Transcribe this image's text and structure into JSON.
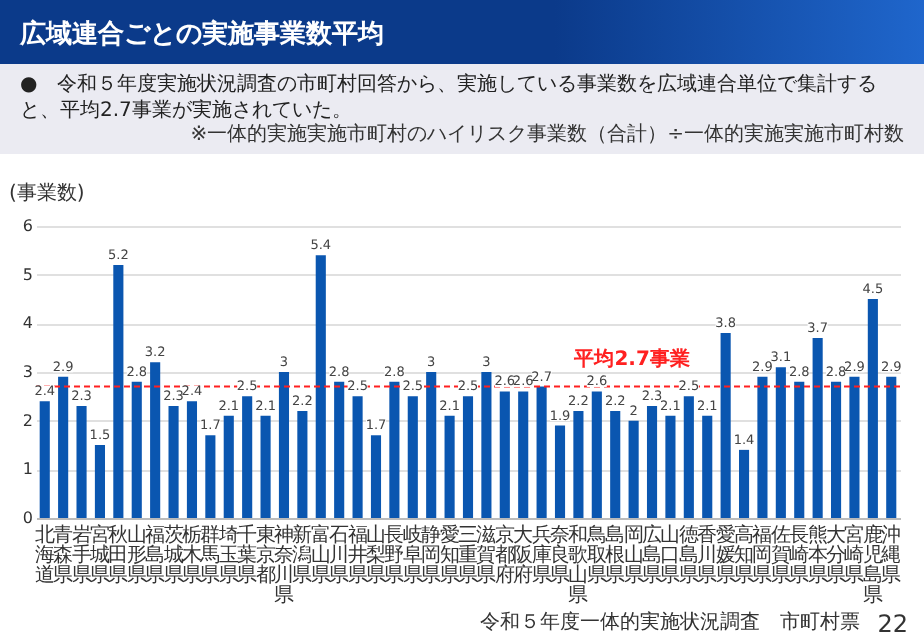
{
  "chart_data": {
    "type": "bar",
    "title": "広域連合ごとの実施事業数平均",
    "subtitle": "●　令和５年度実施状況調査の市町村回答から、実施している事業数を広域連合単位で集計すると、平均2.7事業が実施されていた。",
    "ylabel": "(事業数)",
    "annotations": [
      "※一体的実施実施市町村のハイリスク事業数（合計）÷一体的実施実施市町村数",
      "令和５年度一体的実施状況調査　市町村票",
      "22"
    ],
    "categories": [
      "北海道",
      "青森県",
      "岩手県",
      "宮城県",
      "秋田県",
      "山形県",
      "福島県",
      "茨城県",
      "栃木県",
      "群馬県",
      "埼玉県",
      "千葉県",
      "東京都",
      "神奈川県",
      "新潟県",
      "富山県",
      "石川県",
      "福井県",
      "山梨県",
      "長野県",
      "岐阜県",
      "静岡県",
      "愛知県",
      "三重県",
      "滋賀県",
      "京都府",
      "大阪府",
      "兵庫県",
      "奈良県",
      "和歌山県",
      "鳥取県",
      "島根県",
      "岡山県",
      "広島県",
      "山口県",
      "徳島県",
      "香川県",
      "愛媛県",
      "高知県",
      "福岡県",
      "佐賀県",
      "長崎県",
      "熊本県",
      "大分県",
      "宮崎県",
      "鹿児島県",
      "沖縄県"
    ],
    "values": [
      2.4,
      2.9,
      2.3,
      1.5,
      5.2,
      2.8,
      3.2,
      2.3,
      2.4,
      1.7,
      2.1,
      2.5,
      2.1,
      3,
      2.2,
      5.4,
      2.8,
      2.5,
      1.7,
      2.8,
      2.5,
      3,
      2.1,
      2.5,
      3,
      2.6,
      2.6,
      2.7,
      1.9,
      2.2,
      2.6,
      2.2,
      2,
      2.3,
      2.1,
      2.5,
      2.1,
      3.8,
      1.4,
      2.9,
      3.1,
      2.8,
      3.7,
      2.8,
      2.9,
      4.5,
      2.9
    ],
    "color": "#0a56b0",
    "data_labels": true,
    "ylim": [
      0,
      6
    ],
    "yticks": [
      0,
      1,
      2,
      3,
      4,
      5,
      6
    ],
    "grid": "y",
    "ref_lines": [
      {
        "axis": "y",
        "value": 2.7,
        "label": "平均2.7事業",
        "color": "#ff2020",
        "line_style": "dashed"
      }
    ]
  }
}
